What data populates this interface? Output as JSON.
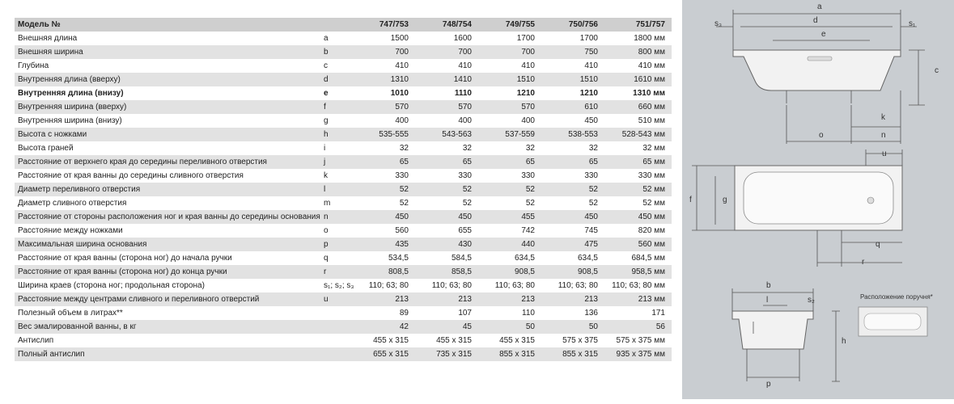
{
  "table": {
    "rows": [
      [
        "Модель №",
        "",
        "747/753",
        "748/754",
        "749/755",
        "750/756",
        "751/757"
      ],
      [
        "Внешняя длина",
        "a",
        "1500",
        "1600",
        "1700",
        "1700",
        "1800 мм"
      ],
      [
        "Внешняя ширина",
        "b",
        "700",
        "700",
        "700",
        "750",
        "800 мм"
      ],
      [
        "Глубина",
        "c",
        "410",
        "410",
        "410",
        "410",
        "410 мм"
      ],
      [
        "Внутренняя длина (вверху)",
        "d",
        "1310",
        "1410",
        "1510",
        "1510",
        "1610 мм"
      ],
      [
        "Внутренняя длина (внизу)",
        "e",
        "1010",
        "1110",
        "1210",
        "1210",
        "1310 мм"
      ],
      [
        "Внутренняя ширина (вверху)",
        "f",
        "570",
        "570",
        "570",
        "610",
        "660 мм"
      ],
      [
        "Внутренняя ширина (внизу)",
        "g",
        "400",
        "400",
        "400",
        "450",
        "510 мм"
      ],
      [
        "Высота с ножками",
        "h",
        "535-555",
        "543-563",
        "537-559",
        "538-553",
        "528-543 мм"
      ],
      [
        "Высота граней",
        "i",
        "32",
        "32",
        "32",
        "32",
        "32 мм"
      ],
      [
        "Расстояние от верхнего края до середины переливного отверстия",
        "j",
        "65",
        "65",
        "65",
        "65",
        "65 мм"
      ],
      [
        "Расстояние от края ванны до середины сливного отверстия",
        "k",
        "330",
        "330",
        "330",
        "330",
        "330 мм"
      ],
      [
        "Диаметр переливного отверстия",
        "l",
        "52",
        "52",
        "52",
        "52",
        "52 мм"
      ],
      [
        "Диаметр сливного отверстия",
        "m",
        "52",
        "52",
        "52",
        "52",
        "52 мм"
      ],
      [
        "Расстояние от стороны расположения ног и края ванны до середины основания",
        "n",
        "450",
        "450",
        "455",
        "450",
        "450 мм"
      ],
      [
        "Расстояние между ножками",
        "o",
        "560",
        "655",
        "742",
        "745",
        "820 мм"
      ],
      [
        "Максимальная ширина основания",
        "p",
        "435",
        "430",
        "440",
        "475",
        "560 мм"
      ],
      [
        "Расстояние от края ванны (сторона ног) до начала ручки",
        "q",
        "534,5",
        "584,5",
        "634,5",
        "634,5",
        "684,5 мм"
      ],
      [
        "Расстояние от края ванны (сторона ног) до конца ручки",
        "r",
        "808,5",
        "858,5",
        "908,5",
        "908,5",
        "958,5 мм"
      ],
      [
        "Ширина краев (сторона ног; продольная сторона)",
        "s₁; s₂; s₃",
        "110; 63; 80",
        "110; 63; 80",
        "110; 63; 80",
        "110; 63; 80",
        "110; 63; 80 мм"
      ],
      [
        "Расстояние между центрами сливного и переливного отверстий",
        "u",
        "213",
        "213",
        "213",
        "213",
        "213 мм"
      ],
      [
        "Полезный объем в литрах**",
        "",
        "89",
        "107",
        "110",
        "136",
        "171"
      ],
      [
        "Вес эмалированной ванны, в кг",
        "",
        "42",
        "45",
        "50",
        "50",
        "56"
      ],
      [
        "Антислип",
        "",
        "455 x 315",
        "455 x 315",
        "455 x 315",
        "575 x 375",
        "575 x 375 мм"
      ],
      [
        "Полный антислип",
        "",
        "655 x 315",
        "735 x 315",
        "855 x 315",
        "855 x 315",
        "935 x 375 мм"
      ]
    ]
  },
  "diagram": {
    "labels": [
      {
        "text": "a"
      },
      {
        "text": "d"
      },
      {
        "text": "e"
      },
      {
        "text": "s₃"
      },
      {
        "text": "s₁"
      },
      {
        "text": "c"
      },
      {
        "text": "k"
      },
      {
        "text": "n"
      },
      {
        "text": "o"
      },
      {
        "text": "u"
      },
      {
        "text": "f"
      },
      {
        "text": "g"
      },
      {
        "text": "q"
      },
      {
        "text": "r"
      },
      {
        "text": "b"
      },
      {
        "text": "l"
      },
      {
        "text": "s₂"
      },
      {
        "text": "h"
      },
      {
        "text": "p"
      },
      {
        "text": "Расположение поручня*"
      }
    ]
  }
}
